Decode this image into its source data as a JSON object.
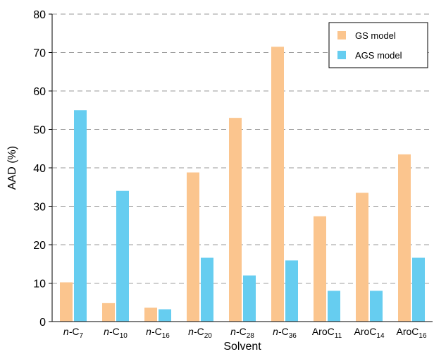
{
  "chart_data": {
    "type": "bar",
    "categories": [
      {
        "prefix": "n-",
        "base": "C",
        "sub": "7"
      },
      {
        "prefix": "n-",
        "base": "C",
        "sub": "10"
      },
      {
        "prefix": "n-",
        "base": "C",
        "sub": "16"
      },
      {
        "prefix": "n-",
        "base": "C",
        "sub": "20"
      },
      {
        "prefix": "n-",
        "base": "C",
        "sub": "28"
      },
      {
        "prefix": "n-",
        "base": "C",
        "sub": "36"
      },
      {
        "prefix": "",
        "base": "AroC",
        "sub": "11"
      },
      {
        "prefix": "",
        "base": "AroC",
        "sub": "14"
      },
      {
        "prefix": "",
        "base": "AroC",
        "sub": "16"
      }
    ],
    "series": [
      {
        "name": "GS model",
        "color": "#fbc58e",
        "values": [
          10.2,
          4.8,
          3.6,
          38.8,
          53.0,
          71.5,
          27.4,
          33.5,
          43.5
        ]
      },
      {
        "name": "AGS model",
        "color": "#66cdf0",
        "values": [
          55.0,
          34.0,
          3.2,
          16.6,
          12.0,
          15.9,
          8.0,
          8.0,
          16.6
        ]
      }
    ],
    "xlabel": "Solvent",
    "ylabel": "AAD (%)",
    "ylim": [
      0,
      80
    ],
    "yticks": [
      0,
      10,
      20,
      30,
      40,
      50,
      60,
      70,
      80
    ],
    "grid": true,
    "legend_position": "top-right"
  }
}
